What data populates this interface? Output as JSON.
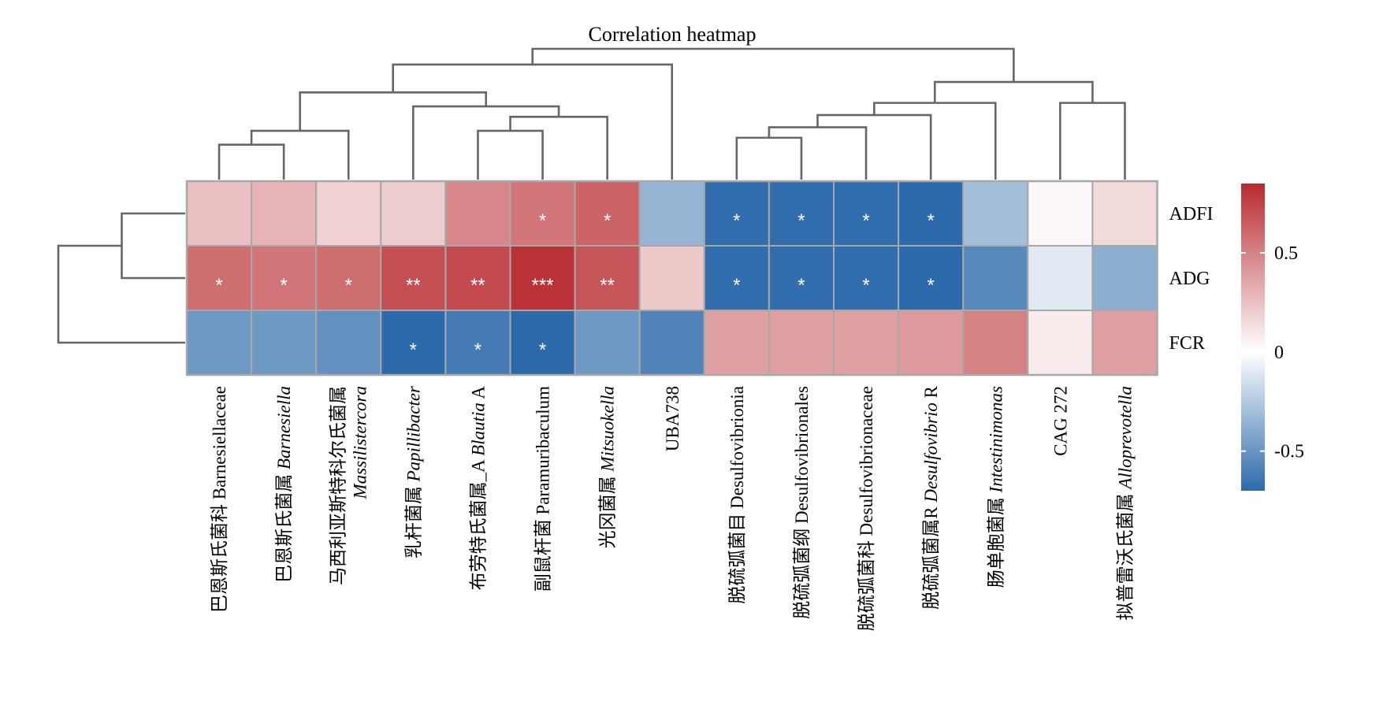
{
  "chart_data": {
    "type": "heatmap",
    "title": "Correlation heatmap",
    "rows": [
      "ADFI",
      "ADG",
      "FCR"
    ],
    "columns": [
      {
        "parts": [
          {
            "t": "巴恩斯氏菌科 Barnesiellaceae",
            "i": false
          }
        ]
      },
      {
        "parts": [
          {
            "t": "巴恩斯氏菌属 ",
            "i": false
          },
          {
            "t": "Barnesiella",
            "i": true
          }
        ]
      },
      {
        "parts": [
          {
            "t": "马西利亚斯特科尔氏菌属",
            "i": false
          }
        ],
        "line2": [
          {
            "t": "Massilistercora",
            "i": true
          }
        ]
      },
      {
        "parts": [
          {
            "t": "乳杆菌属 ",
            "i": false
          },
          {
            "t": "Papillibacter",
            "i": true
          }
        ]
      },
      {
        "parts": [
          {
            "t": "布劳特氏菌属_A ",
            "i": false
          },
          {
            "t": "Blautia",
            "i": true
          },
          {
            "t": " A",
            "i": false
          }
        ]
      },
      {
        "parts": [
          {
            "t": "副鼠杆菌 Paramuribaculum",
            "i": false
          }
        ]
      },
      {
        "parts": [
          {
            "t": "光冈菌属 ",
            "i": false
          },
          {
            "t": "Mitsuokella",
            "i": true
          }
        ]
      },
      {
        "parts": [
          {
            "t": "UBA738",
            "i": false
          }
        ]
      },
      {
        "parts": [
          {
            "t": "脱硫弧菌目 Desulfovibrionia",
            "i": false
          }
        ]
      },
      {
        "parts": [
          {
            "t": "脱硫弧菌纲 Desulfovibrionales",
            "i": false
          }
        ]
      },
      {
        "parts": [
          {
            "t": "脱硫弧菌科 Desulfovibrionaceae",
            "i": false
          }
        ]
      },
      {
        "parts": [
          {
            "t": "脱硫弧菌属R ",
            "i": false
          },
          {
            "t": "Desulfovibrio",
            "i": true
          },
          {
            "t": " R",
            "i": false
          }
        ]
      },
      {
        "parts": [
          {
            "t": "肠单胞菌属 ",
            "i": false
          },
          {
            "t": "Intestinimonas",
            "i": true
          }
        ]
      },
      {
        "parts": [
          {
            "t": "CAG 272",
            "i": false
          }
        ]
      },
      {
        "parts": [
          {
            "t": "拟普雷沃氏菌属 ",
            "i": false
          },
          {
            "t": "Alloprevotella",
            "i": true
          }
        ]
      }
    ],
    "values": [
      [
        0.25,
        0.3,
        0.18,
        0.2,
        0.48,
        0.55,
        0.62,
        -0.35,
        -0.68,
        -0.68,
        -0.68,
        -0.7,
        -0.3,
        0.03,
        0.15
      ],
      [
        0.58,
        0.55,
        0.58,
        0.7,
        0.72,
        0.82,
        0.68,
        0.22,
        -0.68,
        -0.68,
        -0.68,
        -0.7,
        -0.55,
        -0.1,
        -0.38
      ],
      [
        -0.48,
        -0.48,
        -0.52,
        -0.72,
        -0.62,
        -0.72,
        -0.48,
        -0.58,
        0.38,
        0.38,
        0.38,
        0.4,
        0.5,
        0.08,
        0.38
      ]
    ],
    "significance": [
      [
        "",
        "",
        "",
        "",
        "",
        "*",
        "*",
        "",
        "*",
        "*",
        "*",
        "*",
        "",
        "",
        ""
      ],
      [
        "*",
        "*",
        "*",
        "**",
        "**",
        "***",
        "**",
        "",
        "*",
        "*",
        "*",
        "*",
        "",
        "",
        ""
      ],
      [
        "",
        "",
        "",
        "*",
        "*",
        "*",
        "",
        "",
        "",
        "",
        "",
        "",
        "",
        "",
        ""
      ]
    ],
    "colorbar": {
      "range": [
        -0.7,
        0.85
      ],
      "ticks": [
        {
          "v": 0.5,
          "label": "0.5"
        },
        {
          "v": 0,
          "label": "0"
        },
        {
          "v": -0.5,
          "label": "-0.5"
        }
      ],
      "colors": {
        "low": "#2c6aab",
        "mid": "#ffffff",
        "high": "#b82a2f"
      }
    },
    "col_dendrogram": {
      "leaves": [
        0,
        1,
        2,
        3,
        4,
        5,
        6,
        7,
        8,
        9,
        10,
        11,
        12,
        13,
        14
      ],
      "merges": [
        {
          "a": "L0",
          "b": "L1",
          "h": 0.2
        },
        {
          "a": "M0",
          "b": "L2",
          "h": 0.28
        },
        {
          "a": "L4",
          "b": "L5",
          "h": 0.28
        },
        {
          "a": "M2",
          "b": "L6",
          "h": 0.36
        },
        {
          "a": "L3",
          "b": "M3",
          "h": 0.42
        },
        {
          "a": "M1",
          "b": "M4",
          "h": 0.5
        },
        {
          "a": "M5",
          "b": "L7",
          "h": 0.66
        },
        {
          "a": "L8",
          "b": "L9",
          "h": 0.24
        },
        {
          "a": "M7",
          "b": "L10",
          "h": 0.3
        },
        {
          "a": "M8",
          "b": "L11",
          "h": 0.37
        },
        {
          "a": "M9",
          "b": "L12",
          "h": 0.44
        },
        {
          "a": "L13",
          "b": "L14",
          "h": 0.44
        },
        {
          "a": "M10",
          "b": "M11",
          "h": 0.56
        },
        {
          "a": "M6",
          "b": "M12",
          "h": 0.75
        }
      ]
    },
    "row_dendrogram": {
      "leaves": [
        0,
        1,
        2
      ],
      "merges": [
        {
          "a": "L0",
          "b": "L1",
          "h": 0.5
        },
        {
          "a": "M0",
          "b": "L2",
          "h": 1.0
        }
      ]
    }
  }
}
